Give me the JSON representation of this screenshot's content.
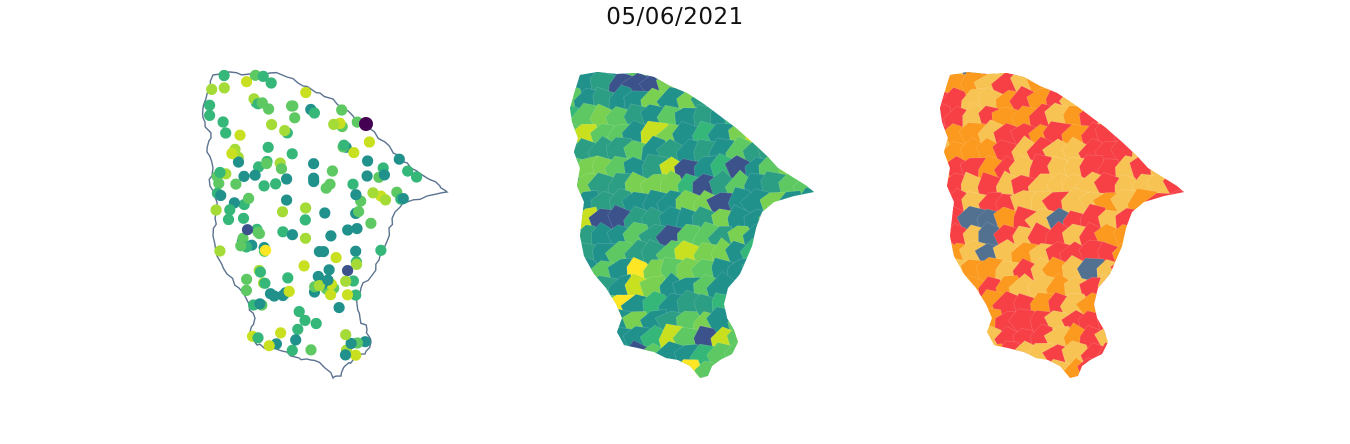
{
  "title": "05/06/2021",
  "colors": {
    "outline": "#5b7390",
    "viridis": [
      "#440154",
      "#3b528b",
      "#21918c",
      "#2c9e83",
      "#35b779",
      "#5ec962",
      "#7ad151",
      "#a5db36",
      "#c8e020",
      "#fde725"
    ],
    "classes": {
      "low": "#52708f",
      "moderate": "#f7c454",
      "high": "#fb9a1e",
      "very_high": "#f64046"
    }
  },
  "panels": [
    {
      "kind": "point-map"
    },
    {
      "kind": "choropleth-continuous"
    },
    {
      "kind": "choropleth-categorical"
    }
  ]
}
